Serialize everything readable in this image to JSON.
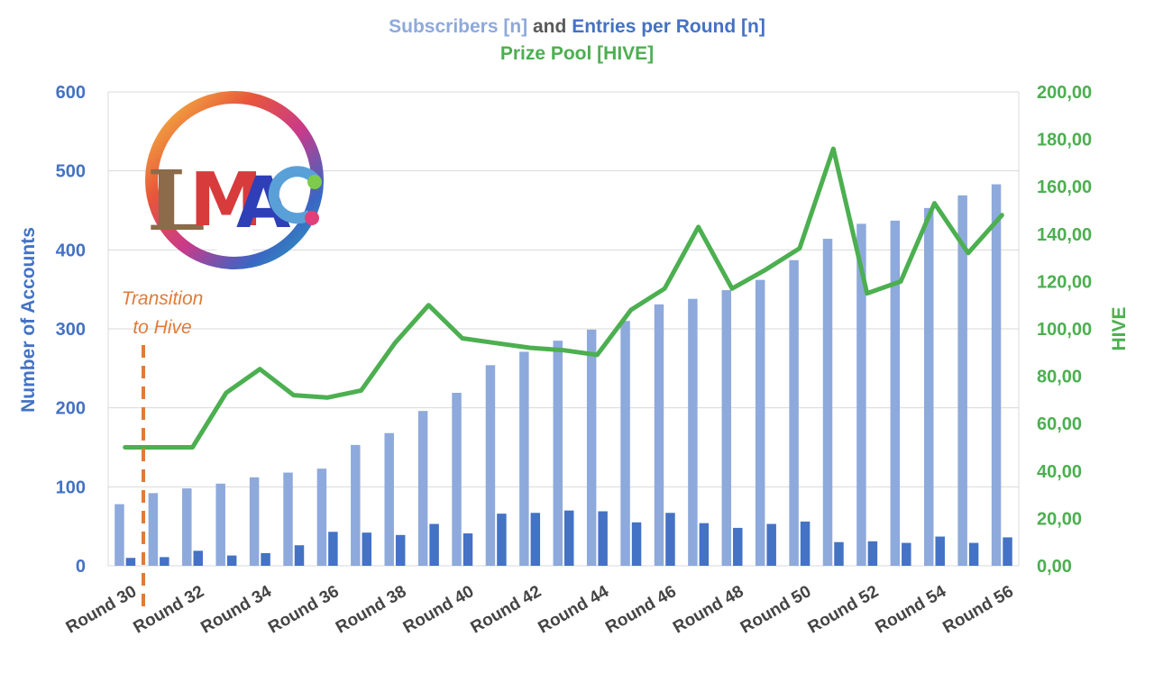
{
  "title": {
    "line1_part1": "Subscribers [n]",
    "line1_part2": " and ",
    "line1_part3": "Entries per Round [n]",
    "line2": "Prize Pool [HIVE]"
  },
  "annotation": {
    "line1": "Transition",
    "line2": "to Hive"
  },
  "logo": {
    "text": "LMAC"
  },
  "colors": {
    "subscribers": "#8EA9DB",
    "entries": "#4472C4",
    "prize_pool": "#4CAF50",
    "left_axis": "#4472C4",
    "right_axis": "#4CAF50",
    "grid": "#D9D9D9",
    "annotation": "#E07B39",
    "title_and": "#595959"
  },
  "chart_data": {
    "type": "bar",
    "categories": [
      "Round 30",
      "Round 31",
      "Round 32",
      "Round 33",
      "Round 34",
      "Round 35",
      "Round 36",
      "Round 37",
      "Round 38",
      "Round 39",
      "Round 40",
      "Round 41",
      "Round 42",
      "Round 43",
      "Round 44",
      "Round 45",
      "Round 46",
      "Round 47",
      "Round 48",
      "Round 49",
      "Round 50",
      "Round 51",
      "Round 52",
      "Round 53",
      "Round 54",
      "Round 55",
      "Round 56"
    ],
    "x_tick_labels": [
      "Round 30",
      "Round 32",
      "Round 34",
      "Round 36",
      "Round 38",
      "Round 40",
      "Round 42",
      "Round 44",
      "Round 46",
      "Round 48",
      "Round 50",
      "Round 52",
      "Round 54",
      "Round 56"
    ],
    "series": [
      {
        "name": "Subscribers [n]",
        "type": "bar",
        "axis": "left",
        "values": [
          78,
          92,
          98,
          104,
          112,
          118,
          123,
          153,
          168,
          196,
          219,
          254,
          271,
          285,
          299,
          310,
          331,
          338,
          349,
          362,
          387,
          414,
          433,
          437,
          453,
          469,
          483
        ]
      },
      {
        "name": "Entries per Round [n]",
        "type": "bar",
        "axis": "left",
        "values": [
          10,
          11,
          19,
          13,
          16,
          26,
          43,
          42,
          39,
          53,
          41,
          66,
          67,
          70,
          69,
          55,
          67,
          54,
          48,
          53,
          56,
          30,
          31,
          29,
          37,
          29,
          36
        ]
      },
      {
        "name": "Prize Pool [HIVE]",
        "type": "line",
        "axis": "right",
        "values": [
          50,
          50,
          50,
          73,
          83,
          72,
          71,
          74,
          94,
          110,
          96,
          94,
          92,
          91,
          89,
          108,
          117,
          143,
          117,
          125,
          134,
          176,
          115,
          120,
          153,
          132,
          148
        ]
      }
    ],
    "ylabel": "Number of Accounts",
    "ylim": [
      0,
      600
    ],
    "y_ticks": [
      "0",
      "100",
      "200",
      "300",
      "400",
      "500",
      "600"
    ],
    "y2label": "HIVE",
    "y2lim": [
      0,
      200
    ],
    "y2_ticks": [
      "0,00",
      "20,00",
      "40,00",
      "60,00",
      "80,00",
      "100,00",
      "120,00",
      "140,00",
      "160,00",
      "180,00",
      "200,00"
    ],
    "transition_marker_after_category": "Round 30",
    "grid": true
  }
}
